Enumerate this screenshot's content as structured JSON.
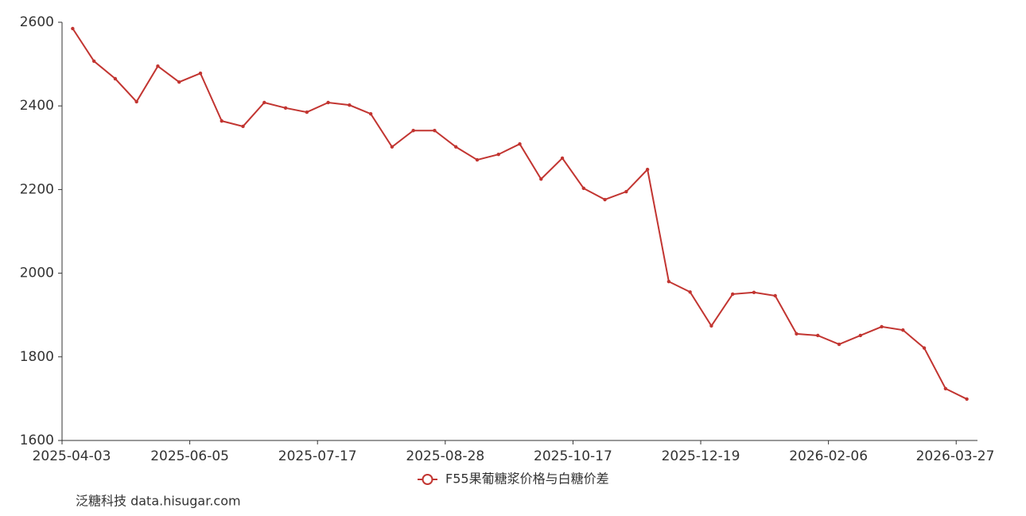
{
  "chart_data": {
    "type": "line",
    "categories": [
      "2025-04-03",
      null,
      null,
      null,
      null,
      null,
      "2025-06-05",
      null,
      null,
      null,
      null,
      null,
      "2025-07-17",
      null,
      null,
      null,
      null,
      null,
      "2025-08-28",
      null,
      null,
      null,
      null,
      null,
      "2025-10-17",
      null,
      null,
      null,
      null,
      null,
      "2025-12-19",
      null,
      null,
      null,
      null,
      null,
      "2026-02-06",
      null,
      null,
      null,
      null,
      null,
      "2026-03-27"
    ],
    "series": [
      {
        "name": "F55果葡糖浆价格与白糖价差",
        "color": "#c23531",
        "values": [
          2585,
          2507,
          2465,
          2410,
          2495,
          2457,
          2478,
          2364,
          2351,
          2408,
          2395,
          2385,
          2408,
          2402,
          2381,
          2302,
          2341,
          2341,
          2302,
          2271,
          2284,
          2309,
          2225,
          2275,
          2203,
          2176,
          2195,
          2248,
          1980,
          1955,
          1874,
          1950,
          1954,
          1946,
          1855,
          1851,
          1830,
          1851,
          1872,
          1864,
          1821,
          1724,
          1699
        ]
      }
    ],
    "ylim": [
      1600,
      2600
    ],
    "yticks": [
      1600,
      1800,
      2000,
      2200,
      2400,
      2600
    ],
    "grid": false,
    "legend": "bottom",
    "footer": "泛糖科技 data.hisugar.com"
  }
}
